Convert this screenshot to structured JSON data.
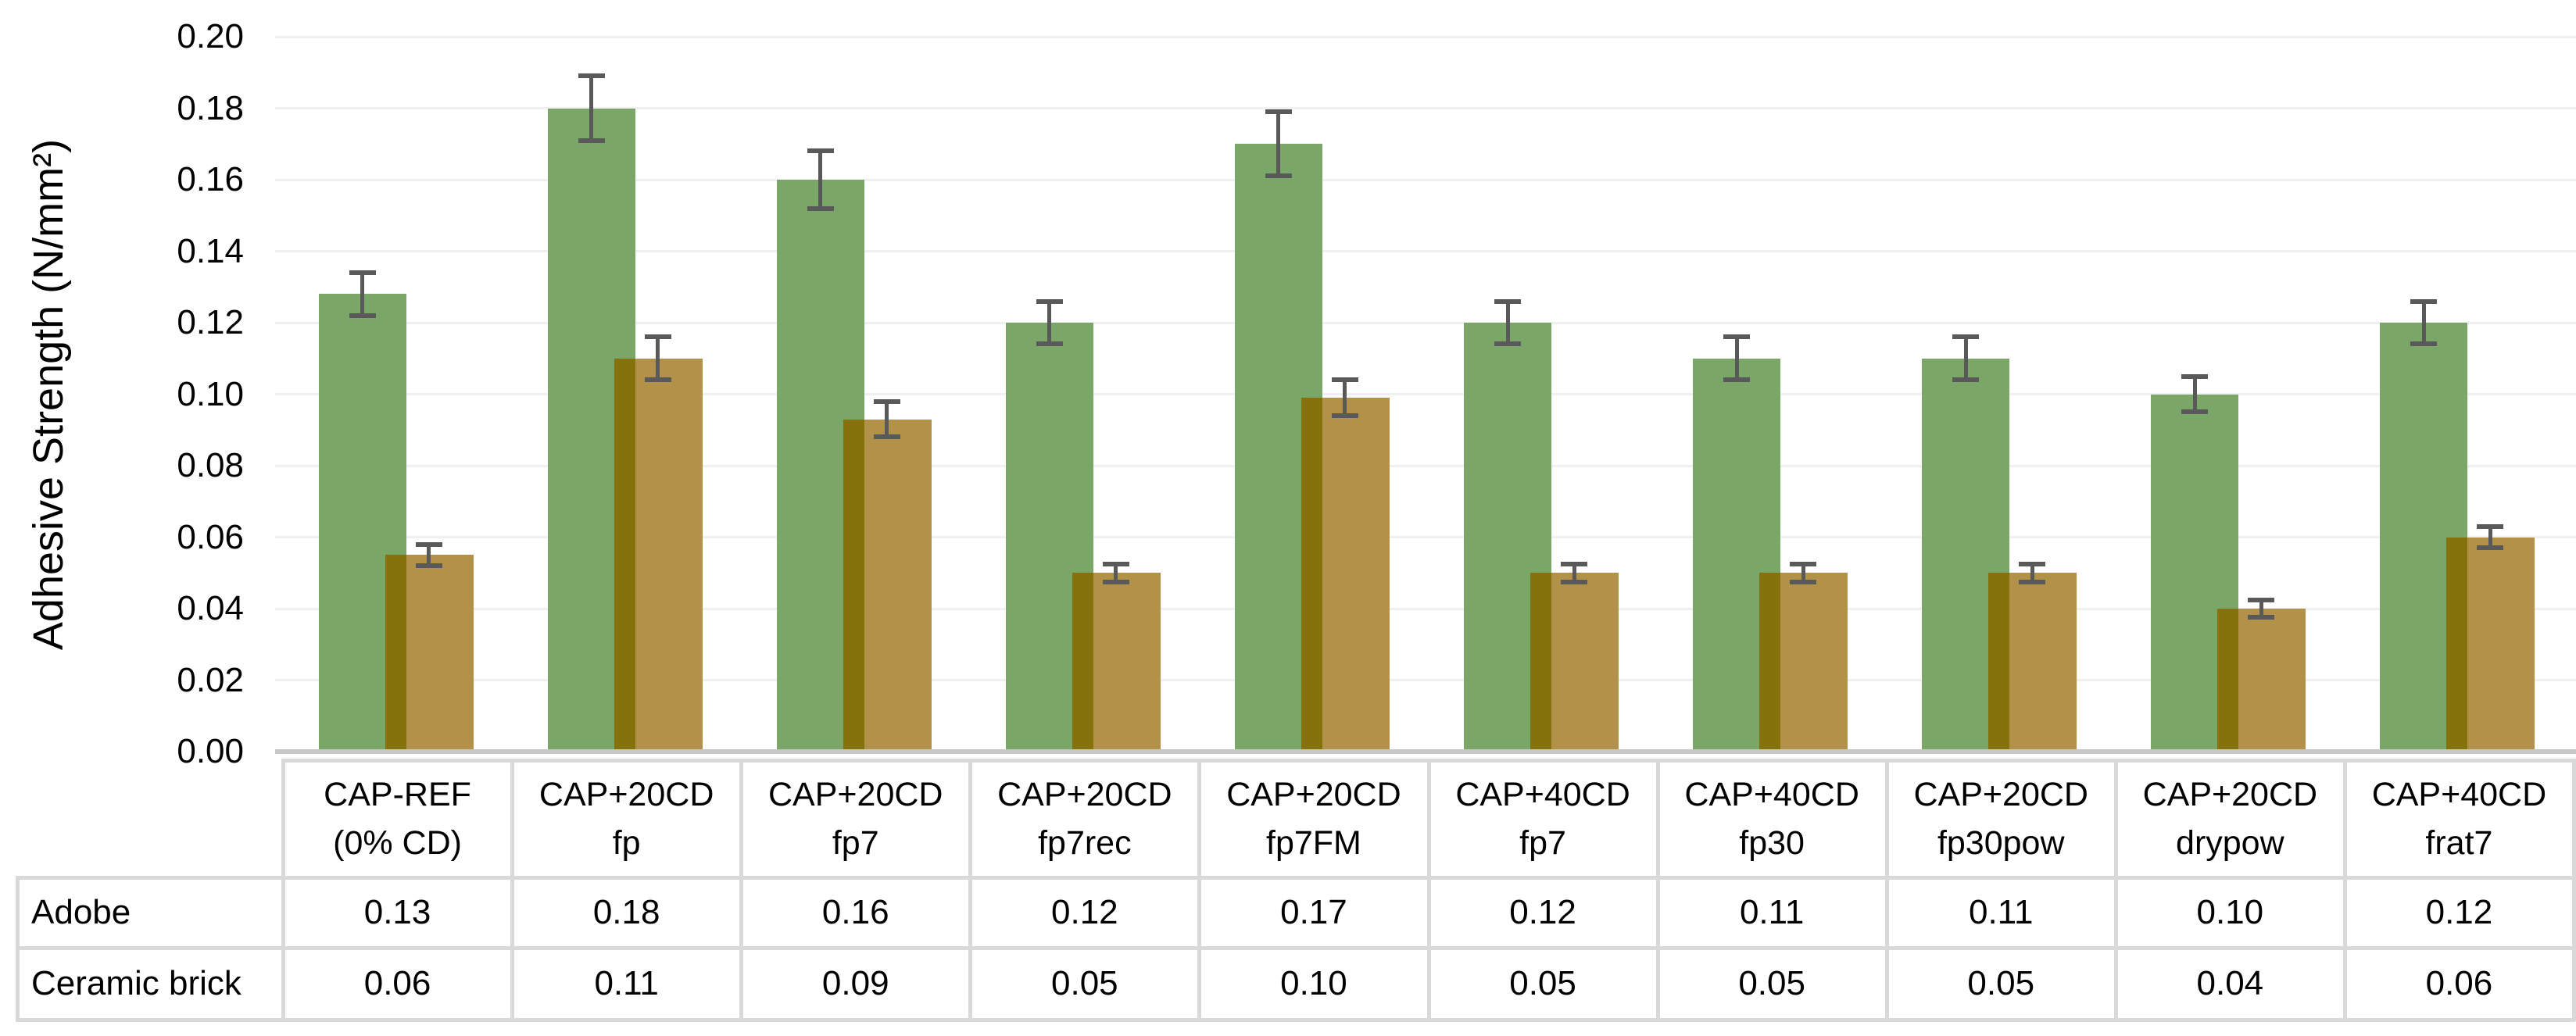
{
  "chart_data": {
    "type": "bar",
    "title": "",
    "xlabel": "",
    "ylabel": "Adhesive Strength (N/mm²)",
    "ylim": [
      0,
      0.2
    ],
    "ytick_step": 0.02,
    "ytick_labels": [
      "0.20",
      "0.18",
      "0.16",
      "0.14",
      "0.12",
      "0.10",
      "0.08",
      "0.06",
      "0.04",
      "0.02",
      "0.00"
    ],
    "grid": "horizontal-major-gridlines",
    "legend_position": "none",
    "error_bars": true,
    "categories": [
      [
        "CAP-REF",
        "(0% CD)"
      ],
      [
        "CAP+20CD",
        "fp"
      ],
      [
        "CAP+20CD",
        "fp7"
      ],
      [
        "CAP+20CD",
        "fp7rec"
      ],
      [
        "CAP+20CD",
        "fp7FM"
      ],
      [
        "CAP+40CD",
        "fp7"
      ],
      [
        "CAP+40CD",
        "fp30"
      ],
      [
        "CAP+20CD",
        "fp30pow"
      ],
      [
        "CAP+20CD",
        "drypow"
      ],
      [
        "CAP+40CD",
        "frat7"
      ]
    ],
    "series": [
      {
        "name": "Adobe",
        "color": "#7AA768",
        "values": [
          0.128,
          0.18,
          0.16,
          0.12,
          0.17,
          0.12,
          0.11,
          0.11,
          0.1,
          0.12
        ],
        "errors": [
          0.006,
          0.009,
          0.008,
          0.006,
          0.009,
          0.006,
          0.006,
          0.006,
          0.005,
          0.006
        ]
      },
      {
        "name": "Ceramic brick",
        "color": "#B29249",
        "overlap_color": "#86720D",
        "values": [
          0.055,
          0.11,
          0.093,
          0.05,
          0.099,
          0.05,
          0.05,
          0.05,
          0.04,
          0.06
        ],
        "errors": [
          0.003,
          0.006,
          0.005,
          0.0025,
          0.005,
          0.0025,
          0.0025,
          0.0025,
          0.0023,
          0.003
        ]
      }
    ],
    "data_table": {
      "rows": [
        {
          "label": "Adobe",
          "values": [
            "0.13",
            "0.18",
            "0.16",
            "0.12",
            "0.17",
            "0.12",
            "0.11",
            "0.11",
            "0.10",
            "0.12"
          ]
        },
        {
          "label": "Ceramic brick",
          "values": [
            "0.06",
            "0.11",
            "0.09",
            "0.05",
            "0.10",
            "0.05",
            "0.05",
            "0.05",
            "0.04",
            "0.06"
          ]
        }
      ]
    },
    "colors": {
      "adobe_bar": "#7AA768",
      "ceramic_bar": "#B29249",
      "bar_overlap": "#86720D",
      "error_bar": "#595959",
      "gridline": "#F0F0F0",
      "axis_line": "#C7C7C7",
      "table_border": "#D9D9D9",
      "text": "#000000"
    }
  }
}
